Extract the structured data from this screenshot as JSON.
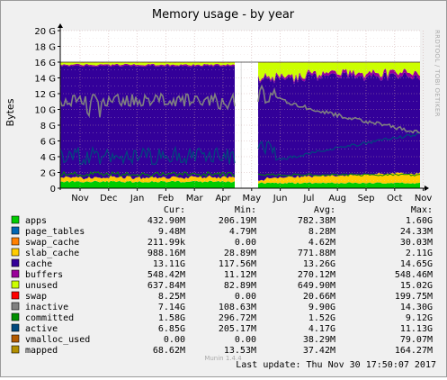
{
  "chart_data": {
    "type": "area",
    "title": "Memory usage - by year",
    "ylabel": "Bytes",
    "ylim": [
      0,
      20
    ],
    "y_unit": "G",
    "y_ticks": [
      "0",
      "2 G",
      "4 G",
      "6 G",
      "8 G",
      "10 G",
      "12 G",
      "14 G",
      "16 G",
      "18 G",
      "20 G"
    ],
    "x_ticks": [
      "Nov",
      "Dec",
      "Jan",
      "Feb",
      "Mar",
      "Apr",
      "May",
      "Jun",
      "Jul",
      "Aug",
      "Sep",
      "Oct",
      "Nov"
    ],
    "total_memory_G": 16.0,
    "watermark": "RRDTOOL / TOBI OETIKER",
    "columns": [
      "Cur:",
      "Min:",
      "Avg:",
      "Max:"
    ],
    "series": [
      {
        "name": "apps",
        "color": "#00cc00",
        "cur": "432.90M",
        "min": "206.19M",
        "avg": "782.38M",
        "max": "1.60G"
      },
      {
        "name": "page_tables",
        "color": "#0066b3",
        "cur": "9.48M",
        "min": "4.79M",
        "avg": "8.28M",
        "max": "24.33M"
      },
      {
        "name": "swap_cache",
        "color": "#ff8000",
        "cur": "211.99k",
        "min": "0.00",
        "avg": "4.62M",
        "max": "30.03M"
      },
      {
        "name": "slab_cache",
        "color": "#ffcc00",
        "cur": "988.16M",
        "min": "28.89M",
        "avg": "771.88M",
        "max": "2.11G"
      },
      {
        "name": "cache",
        "color": "#330099",
        "cur": "13.11G",
        "min": "117.56M",
        "avg": "13.26G",
        "max": "14.65G"
      },
      {
        "name": "buffers",
        "color": "#990099",
        "cur": "548.42M",
        "min": "11.12M",
        "avg": "270.12M",
        "max": "548.46M"
      },
      {
        "name": "unused",
        "color": "#ccff00",
        "cur": "637.84M",
        "min": "82.89M",
        "avg": "649.90M",
        "max": "15.02G"
      },
      {
        "name": "swap",
        "color": "#ff0000",
        "cur": "8.25M",
        "min": "0.00",
        "avg": "20.66M",
        "max": "199.75M"
      },
      {
        "name": "inactive",
        "color": "#808080",
        "cur": "7.14G",
        "min": "108.63M",
        "avg": "9.90G",
        "max": "14.30G"
      },
      {
        "name": "committed",
        "color": "#008f00",
        "cur": "1.58G",
        "min": "296.72M",
        "avg": "1.52G",
        "max": "9.12G"
      },
      {
        "name": "active",
        "color": "#00487d",
        "cur": "6.85G",
        "min": "205.17M",
        "avg": "4.17G",
        "max": "11.13G"
      },
      {
        "name": "vmalloc_used",
        "color": "#b35a00",
        "cur": "0.00",
        "min": "0.00",
        "avg": "38.29M",
        "max": "79.07M"
      },
      {
        "name": "mapped",
        "color": "#b38f00",
        "cur": "68.62M",
        "min": "13.53M",
        "avg": "37.42M",
        "max": "164.27M"
      }
    ]
  },
  "footer": {
    "version": "Munin 1.4.4",
    "last_update": "Last update:  Thu Nov 30 17:50:07 2017"
  }
}
